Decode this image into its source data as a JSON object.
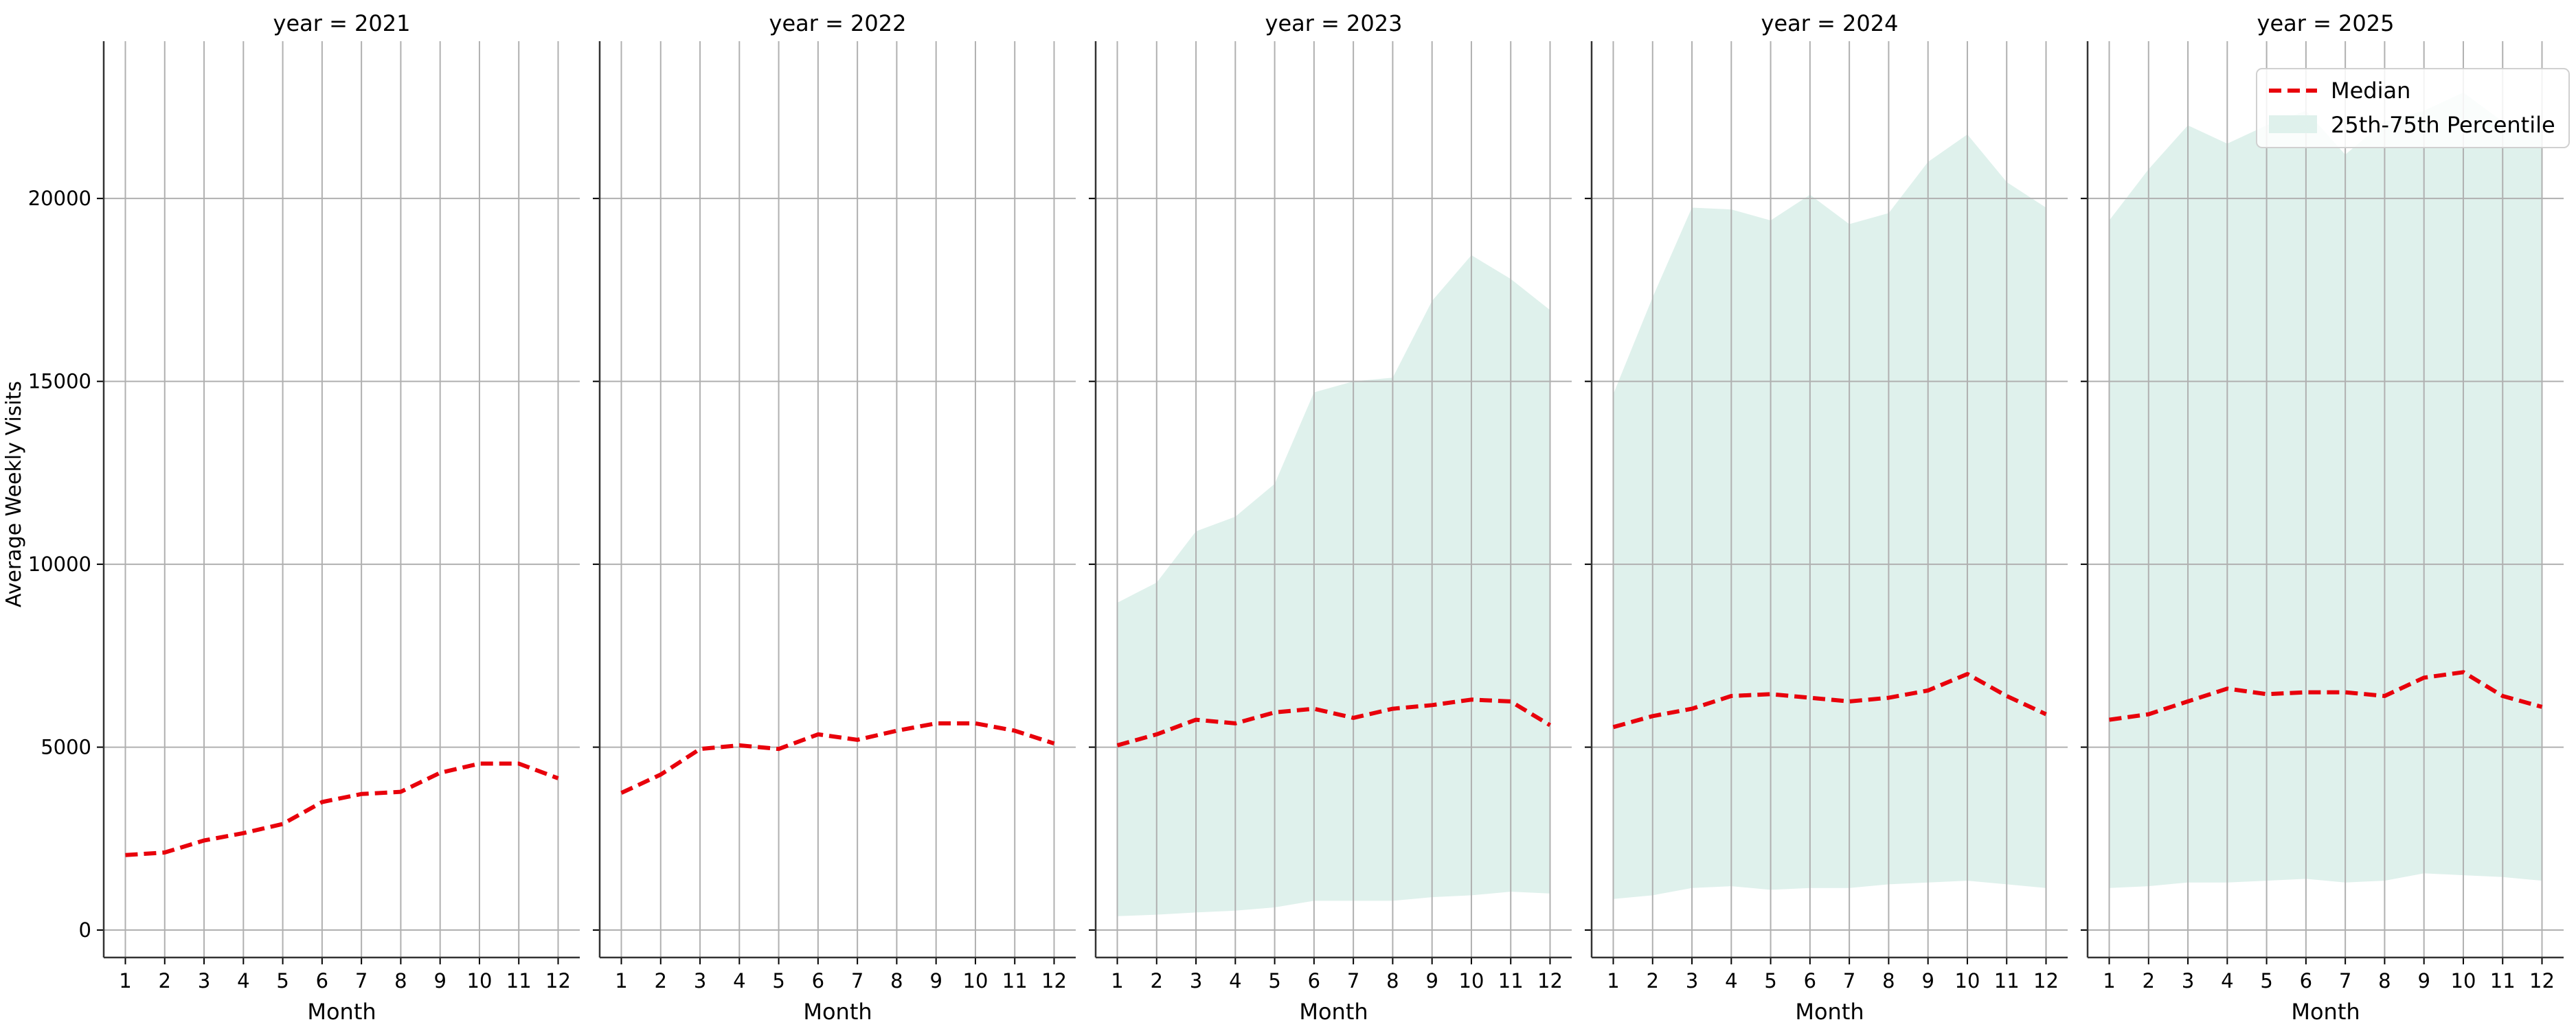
{
  "chart_data": {
    "type": "line",
    "ylabel": "Average Weekly Visits",
    "xlabel": "Month",
    "ylim": [
      -750,
      24300
    ],
    "xlim": [
      0.45,
      12.55
    ],
    "yticks": [
      0,
      5000,
      10000,
      15000,
      20000
    ],
    "xticks": [
      1,
      2,
      3,
      4,
      5,
      6,
      7,
      8,
      9,
      10,
      11,
      12
    ],
    "grid": true,
    "legend": {
      "position": "top-right",
      "entries": [
        {
          "label": "Median",
          "style": "dashed-line",
          "color": "#e8000b"
        },
        {
          "label": "25th-75th Percentile",
          "style": "band",
          "color": "#dff1ec"
        }
      ]
    },
    "months": [
      1,
      2,
      3,
      4,
      5,
      6,
      7,
      8,
      9,
      10,
      11,
      12
    ],
    "panels": [
      {
        "title": "year = 2021",
        "median": [
          2050,
          2120,
          2450,
          2650,
          2900,
          3500,
          3720,
          3780,
          4300,
          4550,
          4550,
          4150
        ],
        "p25": null,
        "p75": null
      },
      {
        "title": "year = 2022",
        "median": [
          3750,
          4250,
          4950,
          5050,
          4950,
          5350,
          5200,
          5450,
          5650,
          5650,
          5450,
          5100
        ],
        "p25": null,
        "p75": null
      },
      {
        "title": "year = 2023",
        "median": [
          5050,
          5350,
          5750,
          5650,
          5950,
          6050,
          5800,
          6050,
          6150,
          6300,
          6250,
          5600
        ],
        "p25": [
          380,
          420,
          480,
          530,
          620,
          800,
          800,
          800,
          900,
          950,
          1050,
          1000
        ],
        "p75": [
          8950,
          9500,
          10900,
          11300,
          12200,
          14700,
          15000,
          15100,
          17200,
          18450,
          17800,
          16950
        ]
      },
      {
        "title": "year = 2024",
        "median": [
          5550,
          5850,
          6050,
          6400,
          6450,
          6350,
          6250,
          6350,
          6550,
          7000,
          6400,
          5900
        ],
        "p25": [
          850,
          950,
          1150,
          1200,
          1100,
          1150,
          1150,
          1250,
          1300,
          1350,
          1250,
          1150
        ],
        "p75": [
          14650,
          17300,
          19750,
          19700,
          19400,
          20100,
          19300,
          19600,
          21000,
          21750,
          20450,
          19750
        ]
      },
      {
        "title": "year = 2025",
        "median": [
          5750,
          5900,
          6250,
          6600,
          6450,
          6500,
          6500,
          6400,
          6900,
          7050,
          6400,
          6100
        ],
        "p25": [
          1150,
          1200,
          1300,
          1300,
          1350,
          1400,
          1300,
          1350,
          1550,
          1500,
          1450,
          1350
        ],
        "p75": [
          19400,
          20800,
          22000,
          21500,
          22000,
          22400,
          21200,
          22100,
          22400,
          22900,
          22100,
          21800
        ]
      }
    ]
  }
}
